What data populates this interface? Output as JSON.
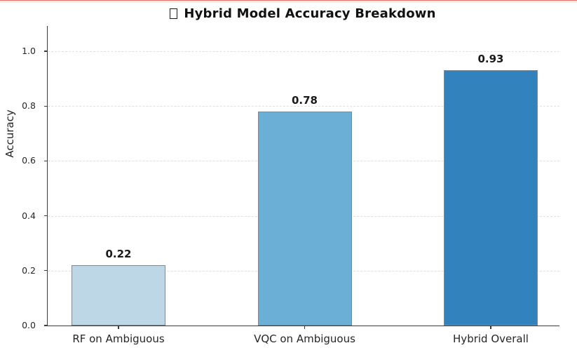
{
  "page": {
    "top_stripe_line_color": "#e2736d",
    "top_stripe_fade_color": "#fbe7e6",
    "background": "#ffffff"
  },
  "title": {
    "text": "Hybrid Model Accuracy Breakdown",
    "missing_glyph": "tofu-box"
  },
  "chart_data": {
    "type": "bar",
    "title": "Hybrid Model Accuracy Breakdown",
    "categories": [
      "RF on Ambiguous",
      "VQC on Ambiguous",
      "Hybrid Overall"
    ],
    "values": [
      0.22,
      0.78,
      0.93
    ],
    "value_labels": [
      "0.22",
      "0.78",
      "0.93"
    ],
    "bar_colors": [
      "#bdd7e7",
      "#6baed6",
      "#3182bd"
    ],
    "bar_edge_color": "#7d8a94",
    "xlabel": "",
    "ylabel": "Accuracy",
    "yticks": [
      0.0,
      0.2,
      0.4,
      0.6,
      0.8,
      1.0
    ],
    "ytick_labels": [
      "0.0",
      "0.2",
      "0.4",
      "0.6",
      "0.8",
      "1.0"
    ],
    "ylim": [
      0,
      1.09
    ],
    "grid": "horizontal-dashed",
    "grid_color": "#e0e0e0",
    "legend": "none",
    "axis_color": "#3b3b3b"
  }
}
